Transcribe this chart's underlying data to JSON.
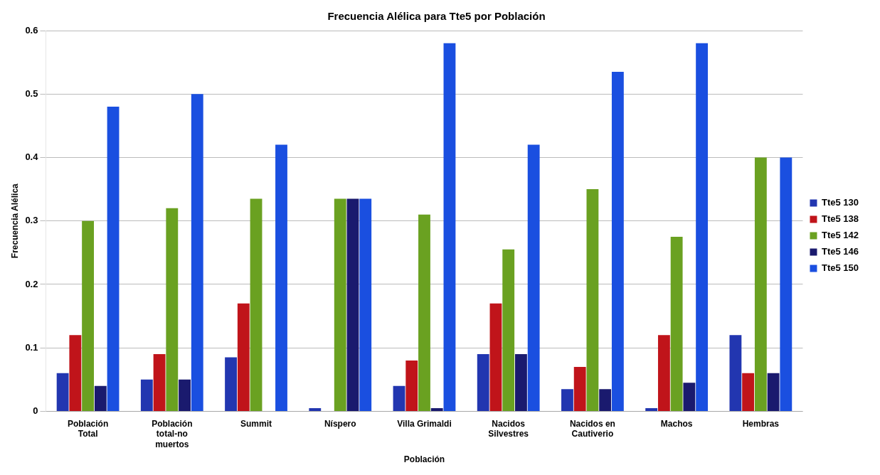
{
  "chart_data": {
    "type": "bar",
    "title": "Frecuencia Alélica para Tte5 por Población",
    "xlabel": "Población",
    "ylabel": "Frecuencia Alélica",
    "categories": [
      [
        "Población",
        "Total"
      ],
      [
        "Población",
        "total-no",
        "muertos"
      ],
      "Summit",
      "Níspero",
      "Villa Grimaldi",
      [
        "Nacidos",
        "Silvestres"
      ],
      [
        "Nacidos en",
        "Cautiverio"
      ],
      "Machos",
      "Hembras"
    ],
    "series": [
      {
        "name": "Tte5 130",
        "color": "#2236b0",
        "values": [
          0.06,
          0.05,
          0.085,
          0.005,
          0.04,
          0.09,
          0.035,
          0.005,
          0.12
        ]
      },
      {
        "name": "Tte5 138",
        "color": "#c0141a",
        "values": [
          0.12,
          0.09,
          0.17,
          0,
          0.08,
          0.17,
          0.07,
          0.12,
          0.06
        ]
      },
      {
        "name": "Tte5 142",
        "color": "#6aa121",
        "values": [
          0.3,
          0.32,
          0.335,
          0.335,
          0.31,
          0.255,
          0.35,
          0.275,
          0.4
        ]
      },
      {
        "name": "Tte5 146",
        "color": "#1a1a6e",
        "values": [
          0.04,
          0.05,
          0,
          0.335,
          0.005,
          0.09,
          0.035,
          0.045,
          0.06
        ]
      },
      {
        "name": "Tte5 150",
        "color": "#1a4fe0",
        "values": [
          0.48,
          0.5,
          0.42,
          0.335,
          0.58,
          0.42,
          0.535,
          0.58,
          0.4
        ]
      }
    ],
    "ylim": [
      0,
      0.6
    ],
    "yticks": [
      0,
      0.1,
      0.2,
      0.3,
      0.4,
      0.5,
      0.6
    ],
    "grid": "y",
    "legend": "right"
  }
}
